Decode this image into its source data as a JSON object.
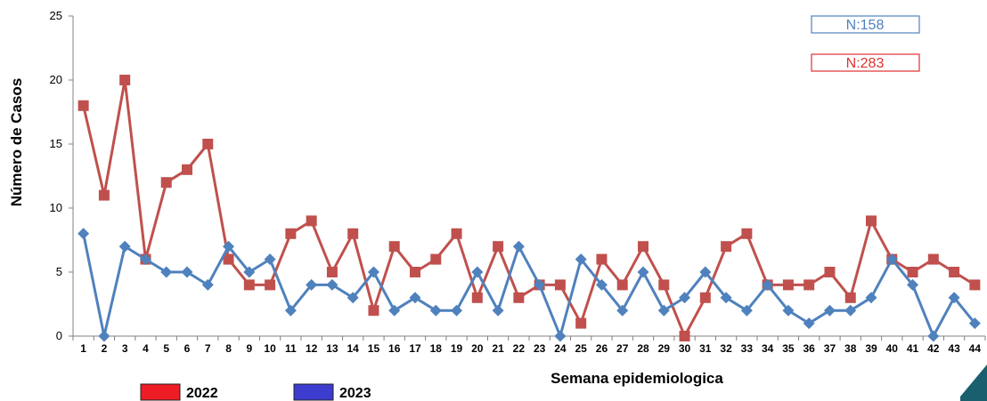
{
  "chart_data": {
    "type": "line",
    "xlabel": "Semana epidemiologica",
    "ylabel": "Número de Casos",
    "ylim": [
      0,
      25
    ],
    "yticks": [
      0,
      5,
      10,
      15,
      20,
      25
    ],
    "x": [
      1,
      2,
      3,
      4,
      5,
      6,
      7,
      8,
      9,
      10,
      11,
      12,
      13,
      14,
      15,
      16,
      17,
      18,
      19,
      20,
      21,
      22,
      23,
      24,
      25,
      26,
      27,
      28,
      29,
      30,
      31,
      32,
      33,
      34,
      35,
      36,
      37,
      38,
      39,
      40,
      41,
      42,
      43,
      44
    ],
    "series": [
      {
        "name": "2022",
        "color": "#c0504d",
        "marker": "square",
        "values": [
          18,
          11,
          20,
          6,
          12,
          13,
          15,
          6,
          4,
          4,
          8,
          9,
          5,
          8,
          2,
          7,
          5,
          6,
          8,
          3,
          7,
          3,
          4,
          4,
          1,
          6,
          4,
          7,
          4,
          0,
          3,
          7,
          8,
          4,
          4,
          4,
          5,
          3,
          9,
          6,
          5,
          6,
          5,
          4
        ]
      },
      {
        "name": "2023",
        "color": "#4f81bd",
        "marker": "diamond",
        "values": [
          8,
          0,
          7,
          6,
          5,
          5,
          4,
          7,
          5,
          6,
          2,
          4,
          4,
          3,
          5,
          2,
          3,
          2,
          2,
          5,
          2,
          7,
          4,
          0,
          6,
          4,
          2,
          5,
          2,
          3,
          5,
          3,
          2,
          4,
          2,
          1,
          2,
          2,
          3,
          6,
          4,
          0,
          3,
          1
        ]
      }
    ],
    "annotations": [
      {
        "text": "N:158",
        "color": "#4f81bd"
      },
      {
        "text": "N:283",
        "color": "#e03030"
      }
    ],
    "legend": [
      {
        "label": "2022",
        "color": "#ee1c25"
      },
      {
        "label": "2023",
        "color": "#3c3ccf"
      }
    ],
    "grid": false,
    "legend_position": "bottom-left"
  }
}
